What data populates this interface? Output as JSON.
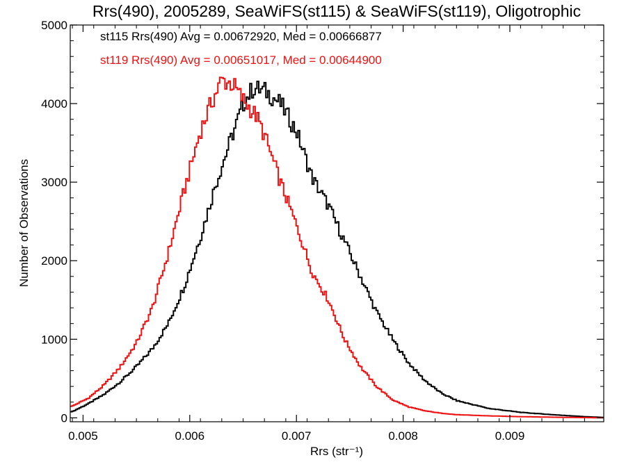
{
  "chart_data": {
    "type": "histogram",
    "title": "Rrs(490), 2005289, SeaWiFS(st115) & SeaWiFS(st119), Oligotrophic",
    "xlabel": "Rrs (str⁻¹)",
    "ylabel": "Number of Observations",
    "xlim": [
      0.00488,
      0.00988
    ],
    "ylim": [
      -50,
      5000
    ],
    "x_ticks": [
      0.005,
      0.006,
      0.007,
      0.008,
      0.009
    ],
    "x_tick_labels": [
      "0.005",
      "0.006",
      "0.007",
      "0.008",
      "0.009"
    ],
    "y_ticks": [
      0,
      1000,
      2000,
      3000,
      4000,
      5000
    ],
    "y_tick_labels": [
      "0",
      "1000",
      "2000",
      "3000",
      "4000",
      "5000"
    ],
    "legend": [
      {
        "text": "st115 Rrs(490) Avg = 0.00672920, Med = 0.00666877",
        "color": "#000000"
      },
      {
        "text": "st119 Rrs(490) Avg = 0.00651017, Med = 0.00644900",
        "color": "#ee1111"
      }
    ],
    "series": [
      {
        "name": "st115",
        "color": "#000000",
        "x": [
          0.0049,
          0.00505,
          0.0052,
          0.00535,
          0.0055,
          0.00565,
          0.0058,
          0.00595,
          0.0061,
          0.00625,
          0.0064,
          0.00652,
          0.0066,
          0.00672,
          0.00685,
          0.007,
          0.00715,
          0.0073,
          0.00745,
          0.0076,
          0.00775,
          0.0079,
          0.00805,
          0.0082,
          0.00835,
          0.0085,
          0.0088,
          0.0091,
          0.0094,
          0.0097,
          0.00988
        ],
        "y": [
          80,
          180,
          300,
          460,
          650,
          880,
          1200,
          1680,
          2300,
          3000,
          3600,
          4050,
          4200,
          4150,
          4000,
          3650,
          3050,
          2700,
          2250,
          1800,
          1350,
          1000,
          700,
          480,
          320,
          220,
          120,
          70,
          40,
          15,
          5
        ]
      },
      {
        "name": "st119",
        "color": "#ee1111",
        "x": [
          0.0049,
          0.00505,
          0.0052,
          0.00535,
          0.0055,
          0.00565,
          0.0058,
          0.00595,
          0.0061,
          0.0062,
          0.0063,
          0.0064,
          0.0065,
          0.00662,
          0.0067,
          0.00685,
          0.007,
          0.00715,
          0.0073,
          0.00745,
          0.0076,
          0.00775,
          0.0079,
          0.00805,
          0.0082,
          0.00835,
          0.0085,
          0.0088,
          0.0091,
          0.0094,
          0.0097,
          0.00988
        ],
        "y": [
          150,
          250,
          420,
          650,
          950,
          1400,
          2100,
          2900,
          3650,
          4000,
          4300,
          4250,
          4050,
          3850,
          3600,
          3000,
          2450,
          1850,
          1500,
          1000,
          650,
          400,
          230,
          140,
          90,
          60,
          40,
          25,
          15,
          8,
          3,
          0
        ]
      }
    ]
  }
}
